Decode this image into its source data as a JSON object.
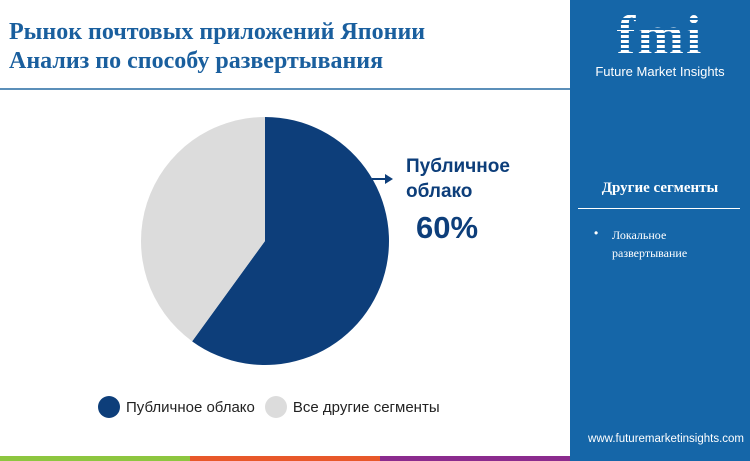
{
  "title": {
    "line1": "Рынок почтовых приложений Японии",
    "line2": "Анализ по способу развертывания"
  },
  "sidebar": {
    "logo_text": "fmi",
    "logo_sub": "Future Market Insights",
    "segments_title": "Другие сегменты",
    "segments": [
      "Локальное развертывание"
    ],
    "url": "www.futuremarketinsights.com"
  },
  "colors": {
    "primary": "#0d3e7a",
    "other": "#dcdcdc",
    "sidebar": "#1566a8",
    "bars": [
      "#8dc63f",
      "#e8582a",
      "#8b2b8e"
    ]
  },
  "callout": {
    "label_line1": "Публичное",
    "label_line2": "облако",
    "value": "60%"
  },
  "chart_data": {
    "type": "pie",
    "categories": [
      "Публичное облако",
      "Все другие сегменты"
    ],
    "values": [
      60,
      40
    ],
    "legend_position": "bottom"
  }
}
